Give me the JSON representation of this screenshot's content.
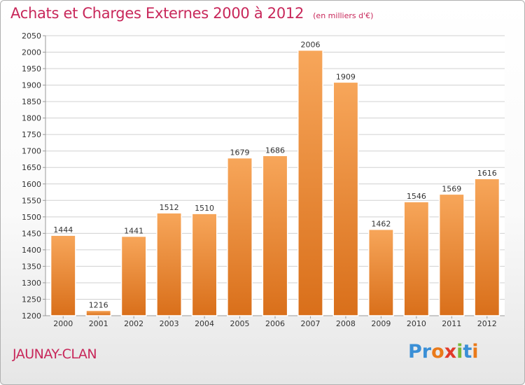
{
  "header": {
    "title": "Achats et Charges Externes 2000 à 2012",
    "subtitle": "(en milliers d'€)"
  },
  "place": "JAUNAY-CLAN",
  "logo": {
    "text": "Proxiti",
    "letter_colors": [
      "#3a8fd6",
      "#3a8fd6",
      "#ea7a1a",
      "#e23a2a",
      "#7ab83a",
      "#3a8fd6",
      "#ea7a1a"
    ]
  },
  "colors": {
    "bar_light": "#f7a65a",
    "bar_dark": "#d96f1a",
    "title": "#c8275a",
    "grid": "#d0d0d0"
  },
  "chart_data": {
    "type": "bar",
    "title": "Achats et Charges Externes 2000 à 2012",
    "subtitle": "(en milliers d'€)",
    "categories": [
      "2000",
      "2001",
      "2002",
      "2003",
      "2004",
      "2005",
      "2006",
      "2007",
      "2008",
      "2009",
      "2010",
      "2011",
      "2012"
    ],
    "values": [
      1444,
      1216,
      1441,
      1512,
      1510,
      1679,
      1686,
      2006,
      1909,
      1462,
      1546,
      1569,
      1616
    ],
    "ylim": [
      1200,
      2050
    ],
    "ytick_step": 50,
    "ytick_labels": [
      "1200",
      "1250",
      "1300",
      "1350",
      "1400",
      "1450",
      "1500",
      "1550",
      "1600",
      "1650",
      "1700",
      "1750",
      "1800",
      "1850",
      "1900",
      "1950",
      "2000",
      "2050"
    ],
    "grid": true,
    "data_labels": true
  }
}
